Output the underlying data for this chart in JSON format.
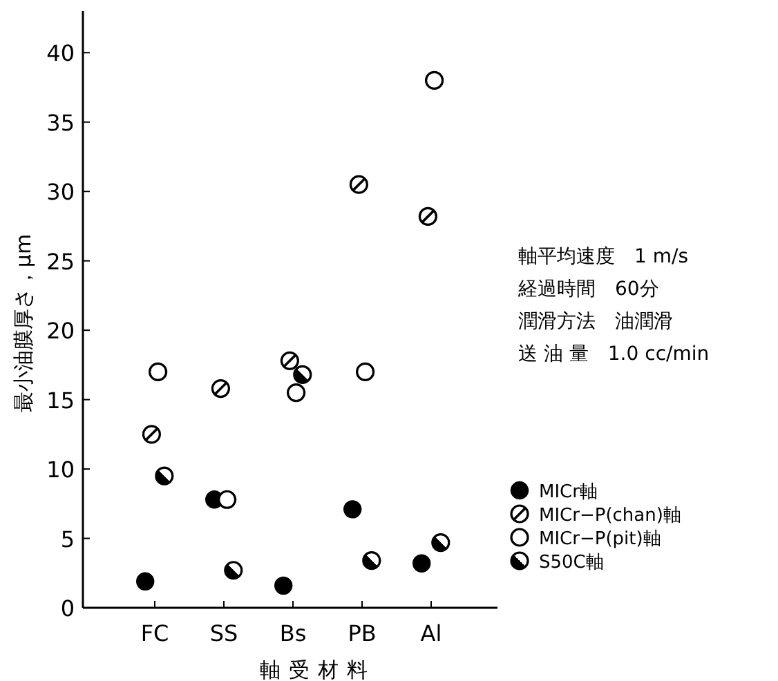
{
  "chart_data": {
    "type": "scatter",
    "xlabel": "軸受材料",
    "ylabel": "最小油膜厚さ，μm",
    "categories": [
      "FC",
      "SS",
      "Bs",
      "PB",
      "Al"
    ],
    "series": [
      {
        "name": "MICr軸",
        "color": "#000000",
        "values": [
          1.9,
          7.8,
          1.6,
          7.1,
          3.2
        ]
      },
      {
        "name": "MICr−P(chan)軸",
        "color": "#000000",
        "values": [
          12.5,
          15.8,
          17.8,
          30.5,
          28.2
        ]
      },
      {
        "name": "MICr−P(pit)軸",
        "color": "#000000",
        "values": [
          17.0,
          7.8,
          15.5,
          17.0,
          38.0
        ]
      },
      {
        "name": "S50C軸",
        "color": "#000000",
        "values": [
          9.5,
          2.7,
          16.8,
          3.4,
          4.7
        ]
      }
    ],
    "ylim": [
      0,
      43
    ],
    "yticks": [
      0,
      5,
      10,
      15,
      20,
      25,
      30,
      35,
      40
    ],
    "legend": "right",
    "grid": false,
    "annotations": [
      "軸平均速度　1 m/s",
      "経過時間　60分",
      "潤滑方法　油潤滑",
      "送 油 量　1.0 cc/min"
    ]
  }
}
